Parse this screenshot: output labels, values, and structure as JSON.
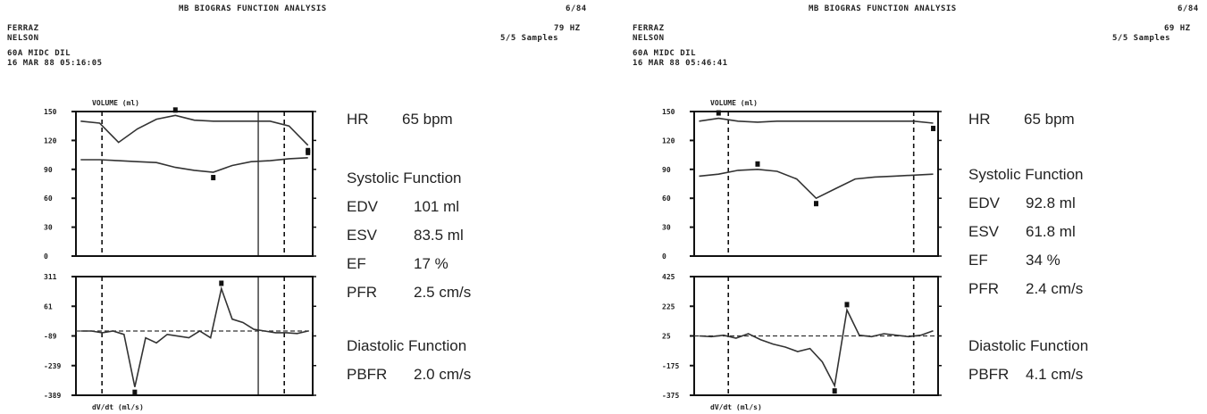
{
  "panels": [
    {
      "header": {
        "title": "MB BIOGRAS FUNCTION ANALYSIS",
        "corner": "6/84",
        "name1": "FERRAZ",
        "name2": "NELSON",
        "study": "60A MIDC DIL",
        "datetime": "16 MAR 88 05:16:05",
        "rate": "79 HZ",
        "samples": "5/5 Samples"
      },
      "results": {
        "hr_label": "HR",
        "hr_value": "65 bpm",
        "systolic_title": "Systolic Function",
        "edv_label": "EDV",
        "edv_value": "101 ml",
        "esv_label": "ESV",
        "esv_value": "83.5 ml",
        "ef_label": "EF",
        "ef_value": "17 %",
        "pfr_label": "PFR",
        "pfr_value": "2.5 cm/s",
        "diastolic_title": "Diastolic Function",
        "pbfr_label": "PBFR",
        "pbfr_value": "2.0 cm/s"
      }
    },
    {
      "header": {
        "title": "MB BIOGRAS FUNCTION ANALYSIS",
        "corner": "6/84",
        "name1": "FERRAZ",
        "name2": "NELSON",
        "study": "60A MIDC DIL",
        "datetime": "16 MAR 88 05:46:41",
        "rate": "69 HZ",
        "samples": "5/5 Samples"
      },
      "results": {
        "hr_label": "HR",
        "hr_value": "65 bpm",
        "systolic_title": "Systolic Function",
        "edv_label": "EDV",
        "edv_value": "92.8 ml",
        "esv_label": "ESV",
        "esv_value": "61.8 ml",
        "ef_label": "EF",
        "ef_value": "34 %",
        "pfr_label": "PFR",
        "pfr_value": "2.4 cm/s",
        "diastolic_title": "Diastolic Function",
        "pbfr_label": "PBFR",
        "pbfr_value": "4.1 cm/s"
      }
    }
  ],
  "chart_data": [
    {
      "type": "line",
      "title": "VOLUME (ml)",
      "ylabel": "",
      "xlabel": "",
      "y_ticks": [
        "150",
        "120",
        "90",
        "60",
        "30",
        "0"
      ],
      "ylim": [
        0,
        150
      ],
      "series": [
        {
          "values": [
            140,
            138,
            118,
            132,
            142,
            146,
            141,
            140,
            140,
            140,
            140,
            135,
            115
          ]
        },
        {
          "values": [
            100,
            100,
            99,
            98,
            97,
            92,
            89,
            87,
            94,
            98,
            99,
            101,
            102
          ]
        }
      ]
    },
    {
      "type": "line",
      "title": "",
      "xlabel": "dV/dt (ml/s)",
      "y_ticks": [
        "311",
        "61",
        "-89",
        "-239",
        "-389"
      ],
      "ylim": [
        -389,
        311
      ],
      "series": [
        {
          "values": [
            -10,
            -10,
            -20,
            -10,
            -30,
            -340,
            -50,
            -80,
            -30,
            -40,
            -50,
            -10,
            -50,
            240,
            60,
            40,
            0,
            -10,
            -20,
            -20,
            -25,
            -10
          ]
        }
      ]
    },
    {
      "type": "line",
      "title": "VOLUME (ml)",
      "ylabel": "",
      "xlabel": "",
      "y_ticks": [
        "150",
        "120",
        "90",
        "60",
        "30",
        "0"
      ],
      "ylim": [
        0,
        150
      ],
      "series": [
        {
          "values": [
            140,
            143,
            140,
            139,
            140,
            140,
            140,
            140,
            140,
            140,
            140,
            140,
            138
          ]
        },
        {
          "values": [
            83,
            85,
            89,
            90,
            88,
            80,
            60,
            70,
            80,
            82,
            83,
            84,
            85
          ]
        }
      ]
    },
    {
      "type": "line",
      "title": "",
      "xlabel": "dV/dt (ml/s)",
      "y_ticks": [
        "425",
        "225",
        "25",
        "-175",
        "-375"
      ],
      "ylim": [
        -375,
        425
      ],
      "series": [
        {
          "values": [
            25,
            20,
            30,
            10,
            40,
            0,
            -30,
            -50,
            -80,
            -60,
            -150,
            -310,
            200,
            30,
            20,
            40,
            30,
            20,
            30,
            60
          ]
        }
      ]
    }
  ]
}
